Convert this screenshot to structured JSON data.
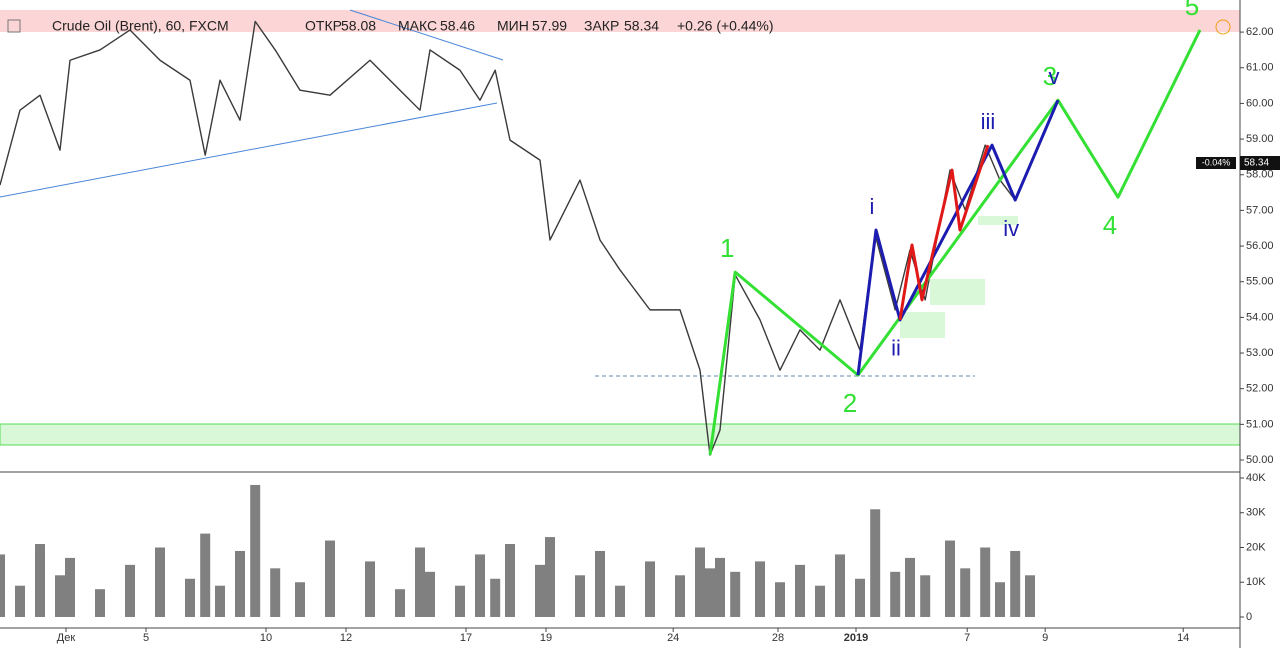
{
  "header": {
    "symbol": "Crude Oil (Brent), 60, FXCM",
    "open_label": "ОТКР",
    "open": "58.08",
    "high_label": "МАКС",
    "high": "58.46",
    "low_label": "МИН",
    "low": "57.99",
    "close_label": "ЗАКР",
    "close": "58.34",
    "change": "+0.26 (+0.44%)",
    "change_badge": "-0.04%"
  },
  "chart_data": {
    "type": "line",
    "color": "#3a3a3a",
    "x": [
      -1.65,
      -1.15,
      -0.65,
      -0.15,
      0.1,
      0.85,
      1.6,
      2.35,
      3.1,
      3.48,
      3.85,
      4.35,
      4.73,
      5.23,
      5.85,
      6.6,
      7.6,
      8.35,
      8.85,
      9.1,
      9.85,
      10.35,
      10.73,
      11.1,
      11.85,
      12.1,
      12.85,
      13.35,
      13.85,
      14.6,
      15.35,
      15.85,
      16.1,
      16.35,
      16.73,
      17.35,
      17.85,
      18.35,
      18.85,
      19.35,
      19.85,
      20.23,
      20.73,
      21.1,
      21.48,
      22.1,
      22.48,
      22.98,
      23.35,
      23.73,
      24.1
    ],
    "values": [
      57.71,
      59.81,
      60.23,
      58.69,
      61.21,
      61.5,
      62.06,
      61.21,
      60.65,
      58.55,
      60.65,
      59.53,
      62.3,
      61.5,
      60.37,
      60.23,
      61.21,
      60.37,
      59.81,
      61.5,
      60.93,
      60.09,
      60.93,
      58.97,
      58.41,
      56.17,
      57.85,
      56.17,
      55.33,
      54.21,
      54.21,
      52.52,
      50.14,
      50.84,
      55.19,
      53.93,
      52.52,
      53.65,
      53.08,
      54.49,
      53.08,
      56.31,
      54.21,
      55.89,
      54.49,
      58.13,
      57.01,
      58.83,
      57.85,
      57.29,
      58.27
    ],
    "xlim": [
      -1.65,
      29.35
    ],
    "xticks": [
      {
        "value": 0,
        "label": "Дек"
      },
      {
        "value": 2,
        "label": "5"
      },
      {
        "value": 5,
        "label": "10"
      },
      {
        "value": 7,
        "label": "12"
      },
      {
        "value": 10,
        "label": "17"
      },
      {
        "value": 12,
        "label": "19"
      },
      {
        "value": 15.18,
        "label": "24"
      },
      {
        "value": 17.8,
        "label": "28"
      },
      {
        "value": 19.75,
        "label": "2019"
      },
      {
        "value": 22.53,
        "label": "7"
      },
      {
        "value": 24.48,
        "label": "9"
      },
      {
        "value": 27.93,
        "label": "14"
      }
    ],
    "ylim": [
      49.72,
      62.9
    ],
    "yticks": [
      {
        "value": 50,
        "label": "50.00"
      },
      {
        "value": 51,
        "label": "51.00"
      },
      {
        "value": 52,
        "label": "52.00"
      },
      {
        "value": 53,
        "label": "53.00"
      },
      {
        "value": 54,
        "label": "54.00"
      },
      {
        "value": 55,
        "label": "55.00"
      },
      {
        "value": 56,
        "label": "56.00"
      },
      {
        "value": 57,
        "label": "57.00"
      },
      {
        "value": 58,
        "label": "58.00"
      },
      {
        "value": 59,
        "label": "59.00"
      },
      {
        "value": 60,
        "label": "60.00"
      },
      {
        "value": 61,
        "label": "61.00"
      },
      {
        "value": 62,
        "label": "62.00"
      }
    ],
    "volume": {
      "color": "#808080",
      "ylim": [
        -3170,
        41150
      ],
      "yticks": [
        0,
        {
          "value": 10000,
          "label": "10K"
        },
        {
          "value": 20000,
          "label": "20K"
        },
        {
          "value": 30000,
          "label": "30K"
        },
        {
          "value": 40000,
          "label": "40K"
        }
      ],
      "values": [
        18000,
        9000,
        21000,
        12000,
        17000,
        8000,
        15000,
        20000,
        11000,
        24000,
        9000,
        19000,
        38000,
        14000,
        10000,
        22000,
        16000,
        8000,
        20000,
        13000,
        9000,
        18000,
        11000,
        21000,
        15000,
        23000,
        12000,
        19000,
        9000,
        16000,
        12000,
        20000,
        14000,
        17000,
        13000,
        16000,
        10000,
        15000,
        9000,
        18000,
        11000,
        31000,
        13000,
        17000,
        12000,
        22000,
        14000,
        20000,
        10000,
        19000,
        12000
      ]
    },
    "waves": [
      {
        "color": "#33e033",
        "x": [
          16.1,
          16.73,
          19.8,
          24.8,
          26.3,
          28.35
        ],
        "values": [
          50.14,
          55.27,
          52.38,
          60.09,
          57.37,
          62.06
        ],
        "point_labels": [
          null,
          "1",
          "2",
          "3",
          "4",
          "5"
        ]
      },
      {
        "color": "#1c1cb0",
        "x": [
          19.8,
          20.25,
          20.85,
          23.15,
          23.73,
          24.8
        ],
        "values": [
          52.38,
          56.45,
          53.93,
          58.83,
          57.29,
          60.09
        ],
        "point_labels": [
          null,
          "i",
          "ii",
          "iii",
          "iv",
          "v"
        ]
      },
      {
        "color": "#e01818",
        "x": [
          20.85,
          21.15,
          21.4,
          22.15,
          22.35,
          23.05
        ],
        "values": [
          53.93,
          56.03,
          54.49,
          58.13,
          56.45,
          58.83
        ],
        "point_labels": [
          null,
          null,
          null,
          null,
          null,
          null
        ]
      }
    ]
  }
}
